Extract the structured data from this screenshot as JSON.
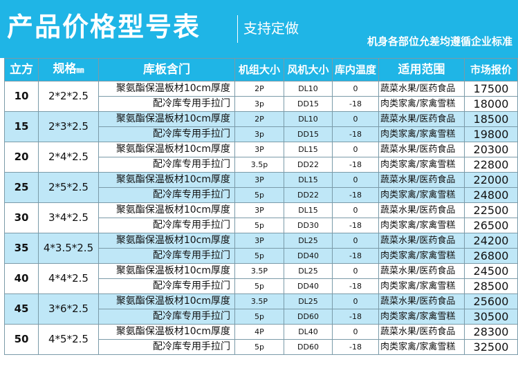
{
  "header": {
    "title": "产品价格型号表",
    "subtitle": "支持定做",
    "note": "机身各部位允差均遵循企业标准"
  },
  "table": {
    "columns": [
      "立方",
      "规格",
      "㎜",
      "库板含门",
      "机组大小",
      "风机大小",
      "库内温度",
      "适用范围",
      "市场报价"
    ],
    "door_line1": "聚氨酯保温板材10cm厚度",
    "door_line2": "配冷库专用手拉门",
    "rows": [
      {
        "volume": "10",
        "spec": "2*2*2.5",
        "items": [
          {
            "unit": "2P",
            "fan": "DL10",
            "temp": "0",
            "use": "蔬菜水果/医药食品",
            "price": "17500"
          },
          {
            "unit": "3p",
            "fan": "DD15",
            "temp": "-18",
            "use": "肉类家禽/家禽雪糕",
            "price": "18000"
          }
        ]
      },
      {
        "volume": "15",
        "spec": "2*3*2.5",
        "items": [
          {
            "unit": "2P",
            "fan": "DL10",
            "temp": "0",
            "use": "蔬菜水果/医药食品",
            "price": "18500"
          },
          {
            "unit": "3p",
            "fan": "DD15",
            "temp": "-18",
            "use": "肉类家禽/家禽雪糕",
            "price": "19800"
          }
        ]
      },
      {
        "volume": "20",
        "spec": "2*4*2.5",
        "items": [
          {
            "unit": "3P",
            "fan": "DL15",
            "temp": "0",
            "use": "蔬菜水果/医药食品",
            "price": "20300"
          },
          {
            "unit": "3.5p",
            "fan": "DD22",
            "temp": "-18",
            "use": "肉类家禽/家禽雪糕",
            "price": "22800"
          }
        ]
      },
      {
        "volume": "25",
        "spec": "2*5*2.5",
        "items": [
          {
            "unit": "3P",
            "fan": "DL15",
            "temp": "0",
            "use": "蔬菜水果/医药食品",
            "price": "22000"
          },
          {
            "unit": "5p",
            "fan": "DD22",
            "temp": "-18",
            "use": "肉类家禽/家禽雪糕",
            "price": "24800"
          }
        ]
      },
      {
        "volume": "30",
        "spec": "3*4*2.5",
        "items": [
          {
            "unit": "3P",
            "fan": "DL15",
            "temp": "0",
            "use": "蔬菜水果/医药食品",
            "price": "22500"
          },
          {
            "unit": "5p",
            "fan": "DD30",
            "temp": "-18",
            "use": "肉类家禽/家禽雪糕",
            "price": "26500"
          }
        ]
      },
      {
        "volume": "35",
        "spec": "4*3.5*2.5",
        "items": [
          {
            "unit": "3P",
            "fan": "DL25",
            "temp": "0",
            "use": "蔬菜水果/医药食品",
            "price": "24200"
          },
          {
            "unit": "5p",
            "fan": "DD40",
            "temp": "-18",
            "use": "肉类家禽/家禽雪糕",
            "price": "26800"
          }
        ]
      },
      {
        "volume": "40",
        "spec": "4*4*2.5",
        "items": [
          {
            "unit": "3.5P",
            "fan": "DL25",
            "temp": "0",
            "use": "蔬菜水果/医药食品",
            "price": "24500"
          },
          {
            "unit": "5p",
            "fan": "DD40",
            "temp": "-18",
            "use": "肉类家禽/家禽雪糕",
            "price": "28500"
          }
        ]
      },
      {
        "volume": "45",
        "spec": "3*6*2.5",
        "items": [
          {
            "unit": "3.5P",
            "fan": "DL25",
            "temp": "0",
            "use": "蔬菜水果/医药食品",
            "price": "25600"
          },
          {
            "unit": "5p",
            "fan": "DD60",
            "temp": "-18",
            "use": "肉类家禽/家禽雪糕",
            "price": "30500"
          }
        ]
      },
      {
        "volume": "50",
        "spec": "4*5*2.5",
        "items": [
          {
            "unit": "4P",
            "fan": "DL40",
            "temp": "0",
            "use": "蔬菜水果/医药食品",
            "price": "28300"
          },
          {
            "unit": "5p",
            "fan": "DD60",
            "temp": "-18",
            "use": "肉类家禽/家禽雪糕",
            "price": "32500"
          }
        ]
      }
    ]
  },
  "colors": {
    "accent": "#1fb5e6",
    "row_alt": "#bfe7f7",
    "border": "#7a9aa8"
  }
}
